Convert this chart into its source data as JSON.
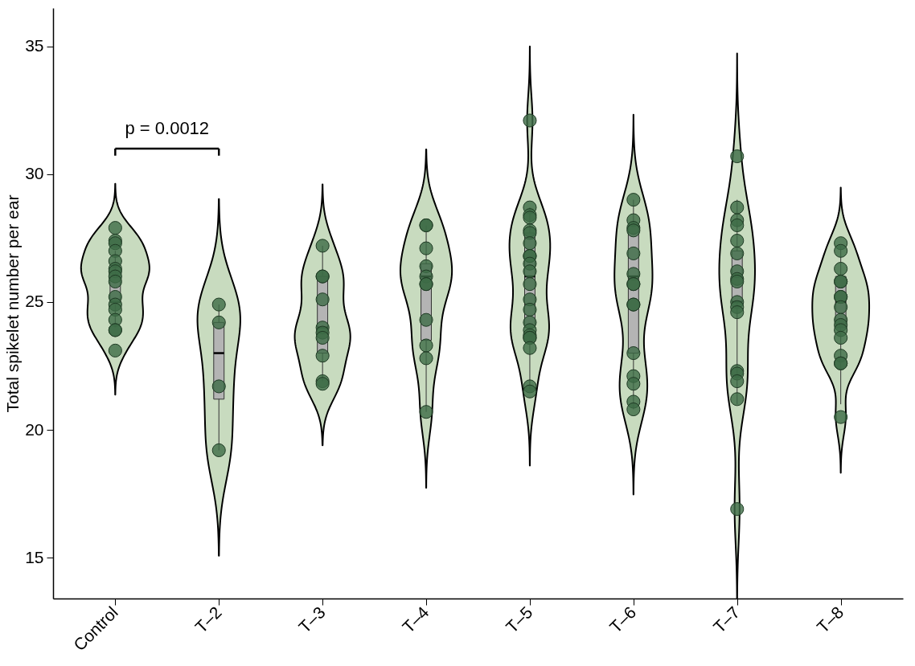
{
  "chart_data": {
    "type": "box",
    "ylabel": "Total spikelet number per ear",
    "categories": [
      "Control",
      "T–2",
      "T–3",
      "T–4",
      "T–5",
      "T–6",
      "T–7",
      "T–8"
    ],
    "ylim": [
      13.4,
      36.5
    ],
    "yticks": [
      15,
      20,
      25,
      30,
      35
    ],
    "grid": false,
    "annotations": [
      "p = 0.0012"
    ],
    "series": [
      {
        "type": "box",
        "color": "#b4b4b4",
        "boxes": [
          {
            "low": 24.0,
            "q1": 25.0,
            "median": 25.0,
            "q3": 26.0,
            "high": 27.0
          },
          {
            "low": 19.2,
            "q1": 21.2,
            "median": 23.0,
            "q3": 24.2,
            "high": 24.9
          },
          {
            "low": 21.9,
            "q1": 23.0,
            "median": 24.0,
            "q3": 26.0,
            "high": 27.2
          },
          {
            "low": 20.7,
            "q1": 23.5,
            "median": 26.0,
            "q3": 26.5,
            "high": 28.0
          },
          {
            "low": 21.6,
            "q1": 24.0,
            "median": 26.0,
            "q3": 27.7,
            "high": 28.7
          },
          {
            "low": 20.8,
            "q1": 23.0,
            "median": 26.0,
            "q3": 28.0,
            "high": 29.0
          },
          {
            "low": 21.0,
            "q1": 25.0,
            "median": 25.0,
            "q3": 27.0,
            "high": 29.0
          },
          {
            "low": 21.0,
            "q1": 24.0,
            "median": 25.0,
            "q3": 26.0,
            "high": 27.2
          }
        ]
      },
      {
        "type": "scatter",
        "color": "#3d6b46",
        "x": [
          "Control",
          "Control",
          "Control",
          "Control",
          "Control",
          "Control",
          "Control",
          "Control",
          "Control",
          "Control",
          "Control",
          "Control",
          "Control",
          "Control",
          "Control",
          "Control",
          "T–2",
          "T–2",
          "T–2",
          "T–2",
          "T–3",
          "T–3",
          "T–3",
          "T–3",
          "T–3",
          "T–3",
          "T–3",
          "T–3",
          "T–3",
          "T–3",
          "T–4",
          "T–4",
          "T–4",
          "T–4",
          "T–4",
          "T–4",
          "T–4",
          "T–4",
          "T–4",
          "T–4",
          "T–4",
          "T–5",
          "T–5",
          "T–5",
          "T–5",
          "T–5",
          "T–5",
          "T–5",
          "T–5",
          "T–5",
          "T–5",
          "T–5",
          "T–5",
          "T–5",
          "T–5",
          "T–5",
          "T–5",
          "T–5",
          "T–5",
          "T–5",
          "T–5",
          "T–5",
          "T–5",
          "T–6",
          "T–6",
          "T–6",
          "T–6",
          "T–6",
          "T–6",
          "T–6",
          "T–6",
          "T–6",
          "T–6",
          "T–6",
          "T–6",
          "T–6",
          "T–6",
          "T–6",
          "T–7",
          "T–7",
          "T–7",
          "T–7",
          "T–7",
          "T–7",
          "T–7",
          "T–7",
          "T–7",
          "T–7",
          "T–7",
          "T–7",
          "T–7",
          "T–7",
          "T–7",
          "T–7",
          "T–7",
          "T–8",
          "T–8",
          "T–8",
          "T–8",
          "T–8",
          "T–8",
          "T–8",
          "T–8",
          "T–8",
          "T–8",
          "T–8",
          "T–8",
          "T–8",
          "T–8",
          "T–8",
          "T–8"
        ],
        "values": [
          27.9,
          27.4,
          27.3,
          27.0,
          26.6,
          26.3,
          26.2,
          26.0,
          25.8,
          25.2,
          24.9,
          24.7,
          24.3,
          23.9,
          23.9,
          23.1,
          24.9,
          24.2,
          21.7,
          19.2,
          27.2,
          26.0,
          26.0,
          25.1,
          24.0,
          23.8,
          23.6,
          22.9,
          21.9,
          21.8,
          28.0,
          28.0,
          27.1,
          26.4,
          26.0,
          25.7,
          25.7,
          24.3,
          23.3,
          22.8,
          20.7,
          32.1,
          28.7,
          28.4,
          28.3,
          27.8,
          27.7,
          27.3,
          26.8,
          26.8,
          26.5,
          26.2,
          25.7,
          25.1,
          24.7,
          24.2,
          23.9,
          23.7,
          23.6,
          23.6,
          23.2,
          21.7,
          21.5,
          29.0,
          28.2,
          27.9,
          27.8,
          26.9,
          26.1,
          25.7,
          25.7,
          24.9,
          24.9,
          23.0,
          22.1,
          21.8,
          21.1,
          20.8,
          30.7,
          28.7,
          28.2,
          28.0,
          27.4,
          26.9,
          26.2,
          25.9,
          25.8,
          25.0,
          24.8,
          24.6,
          22.3,
          22.2,
          21.9,
          21.2,
          16.9,
          27.3,
          27.0,
          26.3,
          25.8,
          25.8,
          25.2,
          25.2,
          24.8,
          24.3,
          24.1,
          23.9,
          23.6,
          22.9,
          22.6,
          22.6,
          20.5
        ]
      }
    ]
  }
}
